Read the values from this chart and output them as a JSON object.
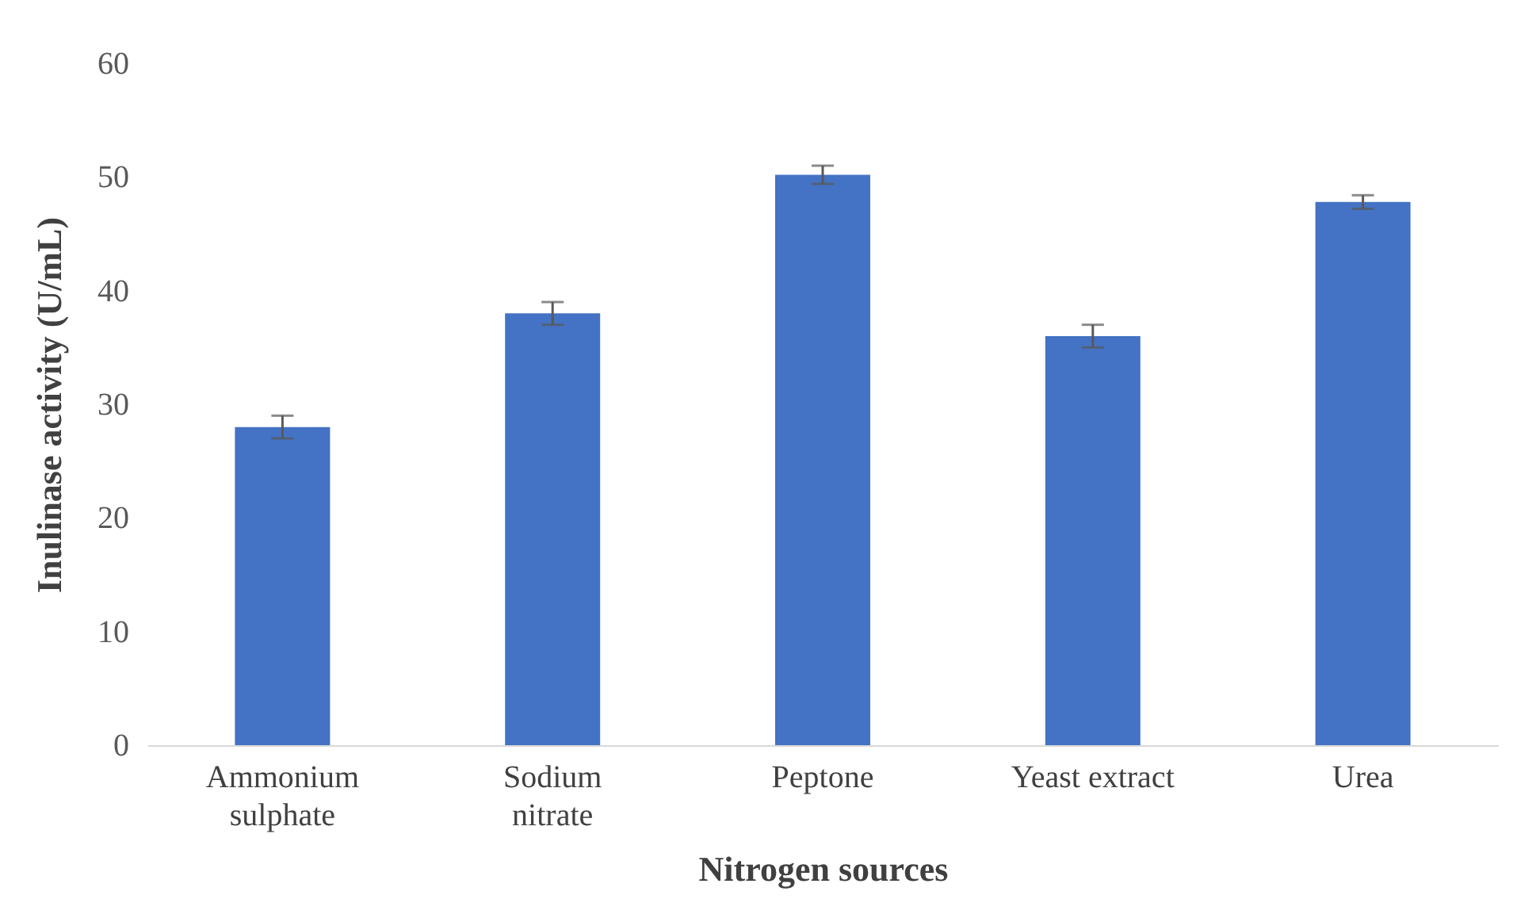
{
  "chart_data": {
    "type": "bar",
    "xlabel": "Nitrogen sources",
    "ylabel": "Inulinase activity (U/mL)",
    "categories": [
      "Ammonium sulphate",
      "Sodium nitrate",
      "Peptone",
      "Yeast extract",
      "Urea"
    ],
    "values": [
      28,
      38,
      50.2,
      36,
      47.8
    ],
    "errors": [
      1,
      1,
      0.8,
      1,
      0.6
    ],
    "color": "#4472c4",
    "ylim": [
      0,
      60
    ],
    "yticks": [
      0,
      10,
      20,
      30,
      40,
      50,
      60
    ],
    "grid": false
  }
}
